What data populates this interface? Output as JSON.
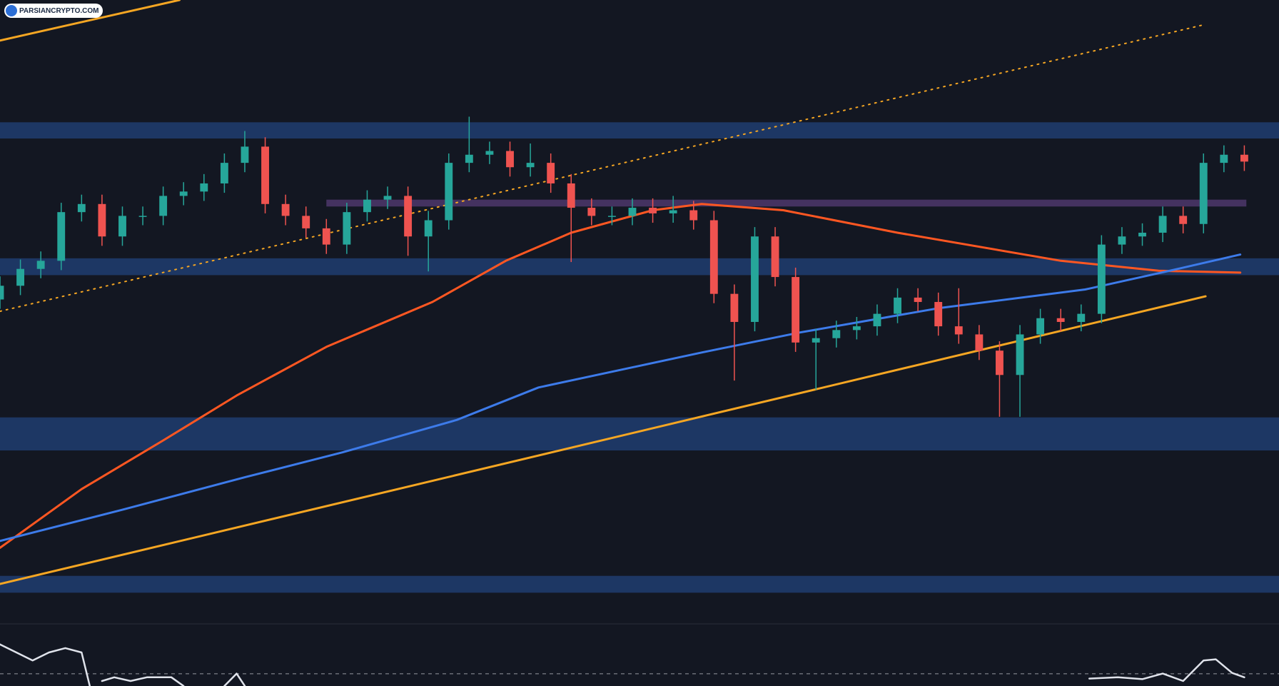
{
  "watermark": "PARSIANCRYPTO.COM",
  "chart_data": {
    "type": "candlestick",
    "xlim": [
      0,
      62.7
    ],
    "ylim": [
      0,
      100
    ],
    "up_color": "#26a69a",
    "down_color": "#ef5350",
    "open": [
      52.0,
      54.2,
      56.9,
      58.2,
      66.0,
      67.3,
      62.1,
      65.4,
      65.4,
      68.6,
      69.3,
      70.6,
      73.9,
      76.5,
      67.3,
      65.4,
      63.4,
      60.8,
      66.0,
      68.0,
      68.6,
      62.1,
      64.7,
      73.9,
      75.2,
      75.8,
      73.2,
      73.9,
      70.6,
      66.7,
      65.4,
      65.4,
      66.7,
      65.8,
      66.3,
      64.7,
      52.9,
      48.4,
      62.1,
      55.6,
      45.1,
      45.8,
      47.1,
      47.7,
      49.7,
      52.3,
      51.6,
      47.7,
      46.4,
      43.8,
      39.9,
      46.4,
      49.0,
      48.4,
      49.7,
      60.8,
      62.1,
      62.7,
      65.4,
      64.1,
      73.9,
      75.2
    ],
    "high": [
      55.7,
      58.4,
      59.7,
      67.5,
      68.8,
      68.8,
      66.9,
      66.9,
      70.1,
      70.8,
      72.1,
      75.4,
      79.0,
      78.0,
      68.8,
      66.9,
      64.9,
      67.5,
      69.5,
      70.1,
      70.1,
      66.2,
      75.4,
      81.3,
      77.3,
      77.3,
      77.0,
      75.4,
      72.1,
      68.2,
      66.9,
      68.2,
      68.2,
      68.6,
      67.8,
      66.2,
      54.4,
      63.6,
      63.6,
      57.1,
      47.3,
      48.6,
      49.2,
      51.2,
      53.8,
      53.8,
      53.1,
      53.8,
      47.9,
      45.3,
      47.9,
      50.5,
      50.5,
      51.2,
      62.3,
      63.6,
      64.2,
      66.9,
      66.9,
      75.4,
      76.7,
      76.7
    ],
    "low": [
      50.5,
      52.7,
      55.4,
      56.7,
      64.5,
      60.6,
      60.6,
      63.9,
      63.9,
      67.1,
      67.8,
      69.1,
      72.4,
      65.8,
      63.9,
      61.9,
      59.3,
      59.3,
      64.5,
      66.5,
      59.0,
      56.5,
      63.2,
      72.4,
      73.7,
      71.7,
      71.7,
      69.1,
      58.0,
      63.9,
      63.9,
      63.9,
      64.3,
      64.3,
      63.2,
      51.4,
      39.0,
      46.9,
      54.1,
      43.6,
      37.5,
      44.3,
      45.6,
      46.2,
      48.2,
      50.1,
      46.2,
      44.9,
      42.3,
      33.2,
      33.2,
      44.9,
      46.9,
      46.9,
      48.2,
      59.3,
      60.6,
      61.2,
      62.6,
      62.6,
      72.4,
      72.6
    ],
    "close": [
      54.2,
      56.9,
      58.2,
      66.0,
      67.3,
      62.1,
      65.4,
      65.4,
      68.6,
      69.3,
      70.6,
      73.9,
      76.5,
      67.3,
      65.4,
      63.4,
      60.8,
      66.0,
      68.0,
      68.6,
      62.1,
      64.7,
      73.9,
      75.2,
      75.8,
      73.2,
      73.9,
      70.6,
      66.7,
      65.4,
      65.4,
      66.7,
      65.8,
      66.3,
      64.7,
      52.9,
      48.4,
      62.1,
      55.6,
      45.1,
      45.8,
      47.1,
      47.7,
      49.7,
      52.3,
      51.6,
      47.7,
      46.4,
      43.8,
      39.9,
      46.4,
      49.0,
      48.4,
      49.7,
      60.8,
      62.1,
      62.7,
      65.4,
      64.1,
      73.9,
      75.2,
      74.1
    ],
    "zones": [
      {
        "range": [
          77.8,
          80.4
        ],
        "color": "#1f3b6b"
      },
      {
        "range": [
          55.9,
          58.6
        ],
        "color": "#1f3b6b"
      },
      {
        "range": [
          27.8,
          33.1
        ],
        "color": "#1f3b6b"
      },
      {
        "range": [
          5.0,
          7.7
        ],
        "color": "#1f3b6b"
      },
      {
        "range": [
          66.9,
          68.0
        ],
        "xrange": [
          16,
          61.1
        ],
        "color": "#4a3567"
      }
    ],
    "series": [
      {
        "color": "#ff5722",
        "width": 3,
        "dash": false,
        "x": [
          0,
          4,
          8,
          11.6,
          16,
          21.2,
          24.8,
          28,
          32,
          34.4,
          38.4,
          44,
          52,
          56.8,
          60.8
        ],
        "values": [
          12.2,
          21.6,
          29.4,
          36.6,
          44.4,
          51.6,
          58.2,
          62.7,
          66.3,
          67.3,
          66.3,
          62.7,
          58.2,
          56.6,
          56.3
        ]
      },
      {
        "color": "#3d7bea",
        "width": 3,
        "dash": false,
        "x": [
          0,
          6,
          12,
          16.8,
          22.4,
          26.4,
          34.4,
          39.2,
          46,
          53.2,
          57.2,
          60.8
        ],
        "values": [
          13.3,
          18.3,
          23.5,
          27.5,
          32.7,
          37.9,
          43.5,
          46.7,
          50.6,
          53.6,
          56.5,
          59.2
        ]
      },
      {
        "color": "#f5a623",
        "width": 3,
        "dash": false,
        "x": [
          0,
          59.1
        ],
        "values": [
          6.4,
          52.5
        ]
      },
      {
        "color": "#f5a623",
        "width": 3,
        "dash": false,
        "x": [
          0,
          8.8
        ],
        "values": [
          93.5,
          100
        ]
      },
      {
        "color": "#f5a623",
        "width": 2,
        "dash": true,
        "x": [
          0,
          59.1
        ],
        "values": [
          50.1,
          96.1
        ]
      }
    ],
    "rsi": {
      "ylim": [
        0,
        100
      ],
      "level": 19.7,
      "color": "#e0e3eb",
      "x": [
        0,
        0.8,
        1.6,
        2.4,
        3.2,
        4,
        4.4,
        null,
        5,
        5.6,
        6.4,
        7.2,
        8.4,
        9,
        null,
        11,
        11.6,
        12,
        null,
        53.4,
        54.8,
        56,
        57,
        58,
        59,
        59.6,
        60.4,
        61
      ],
      "values": [
        67,
        54,
        41,
        54,
        61,
        54,
        0,
        null,
        8,
        14,
        8,
        14,
        14,
        0,
        null,
        0,
        20,
        0,
        null,
        12,
        14,
        11,
        20,
        8,
        41,
        43,
        21,
        14
      ]
    }
  }
}
